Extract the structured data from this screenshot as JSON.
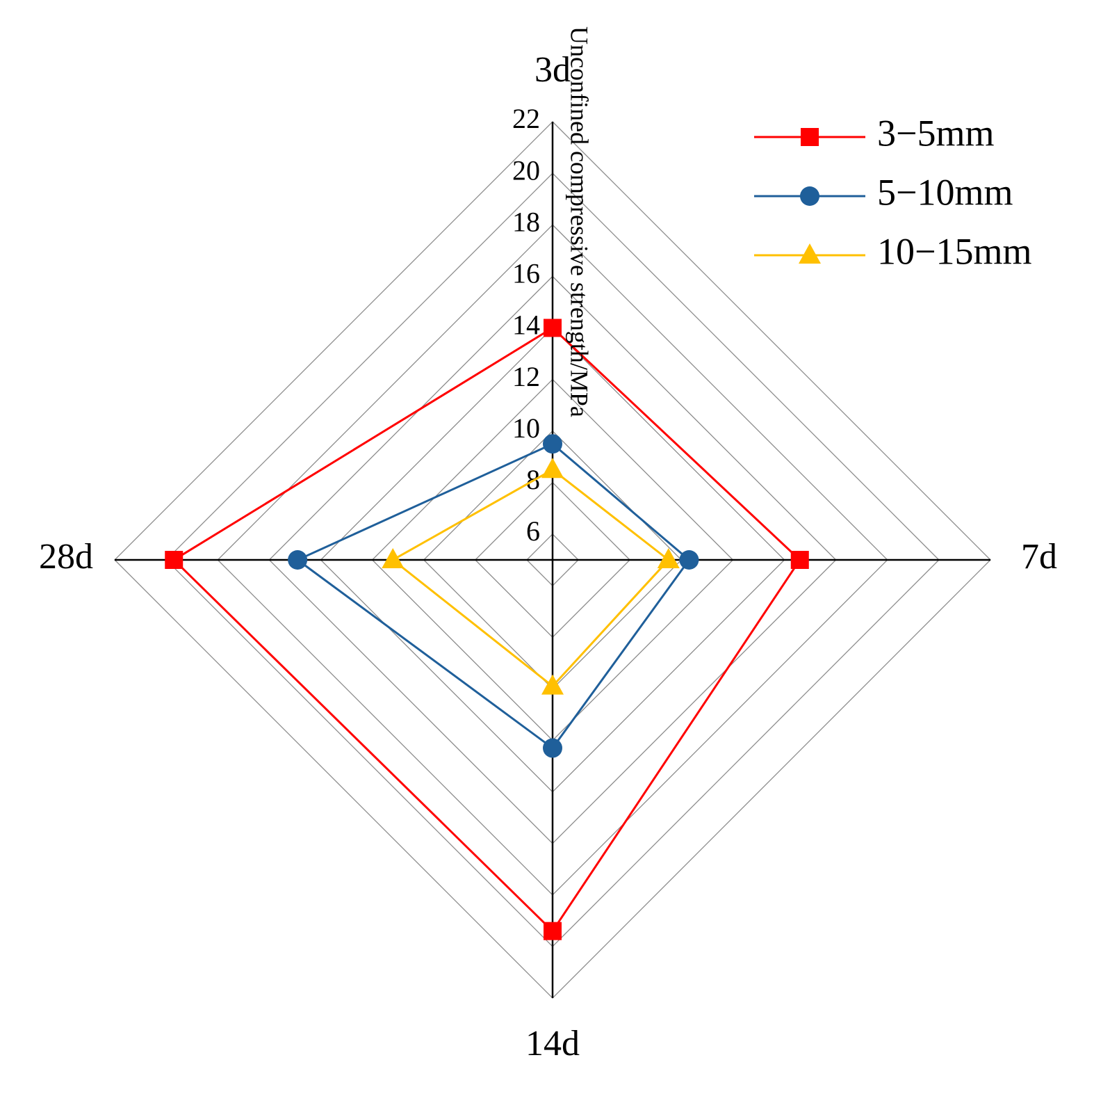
{
  "chart_data": {
    "type": "radar",
    "y_label": "Unconfined compressive strength/MPa",
    "categories": [
      "3d",
      "7d",
      "14d",
      "28d"
    ],
    "series": [
      {
        "name": "3−5mm",
        "color": "#ff0000",
        "marker": "square",
        "values": [
          14,
          14.6,
          19.4,
          19.7
        ]
      },
      {
        "name": "5−10mm",
        "color": "#1f5f9a",
        "marker": "circle",
        "values": [
          9.5,
          10.3,
          12.3,
          14.9
        ]
      },
      {
        "name": "10−15mm",
        "color": "#ffc000",
        "marker": "triangle",
        "values": [
          8.5,
          9.5,
          9.9,
          11.2
        ]
      }
    ],
    "ylim": [
      5,
      22
    ],
    "yticks": [
      6,
      8,
      10,
      12,
      14,
      16,
      18,
      20,
      22
    ],
    "grid": true
  }
}
